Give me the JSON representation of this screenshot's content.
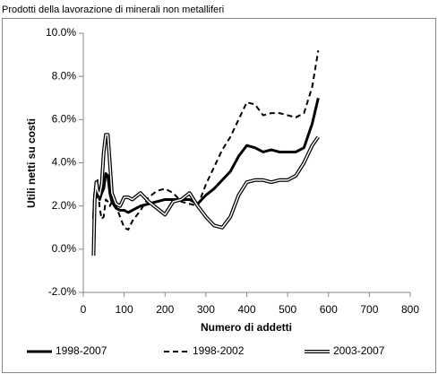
{
  "chart_data": {
    "type": "line",
    "title": "Prodotti della lavorazione di minerali non metalliferi",
    "x_label": "Numero di addetti",
    "y_label": "Utili netti su costi",
    "x": [
      25,
      28,
      32,
      35,
      40,
      45,
      50,
      55,
      60,
      65,
      70,
      80,
      90,
      100,
      110,
      120,
      140,
      160,
      180,
      200,
      220,
      240,
      260,
      280,
      300,
      320,
      340,
      360,
      380,
      400,
      420,
      440,
      460,
      480,
      500,
      520,
      540,
      560,
      575
    ],
    "series": [
      {
        "name": "1998-2007",
        "color": "#000000",
        "style": "solid",
        "values": [
          1.4,
          2.6,
          2.4,
          2.8,
          2.3,
          2.6,
          2.8,
          3.5,
          3.4,
          2.6,
          2.2,
          1.9,
          1.8,
          1.8,
          1.7,
          1.8,
          2.0,
          2.1,
          2.2,
          2.3,
          2.3,
          2.3,
          2.3,
          2.1,
          2.5,
          2.8,
          3.2,
          3.6,
          4.3,
          4.8,
          4.7,
          4.5,
          4.6,
          4.5,
          4.5,
          4.5,
          4.7,
          5.8,
          7.0
        ]
      },
      {
        "name": "1998-2002",
        "color": "#000000",
        "style": "dashed",
        "values": [
          1.5,
          2.8,
          2.5,
          3.2,
          1.9,
          1.4,
          1.5,
          2.3,
          2.2,
          2.0,
          2.2,
          2.0,
          1.5,
          1.0,
          0.9,
          1.3,
          1.8,
          2.4,
          2.7,
          2.8,
          2.6,
          2.2,
          2.1,
          2.0,
          3.0,
          3.8,
          4.6,
          5.2,
          6.0,
          6.8,
          6.7,
          6.2,
          6.3,
          6.3,
          6.2,
          6.1,
          6.3,
          7.5,
          9.2
        ]
      },
      {
        "name": "2003-2007",
        "color": "#000000",
        "style": "double",
        "values": [
          -0.3,
          2.3,
          3.1,
          2.7,
          2.5,
          3.0,
          4.5,
          5.3,
          5.3,
          4.0,
          2.6,
          2.1,
          2.0,
          2.4,
          2.4,
          2.3,
          2.6,
          2.2,
          1.9,
          1.6,
          2.2,
          2.3,
          2.6,
          2.0,
          1.5,
          1.1,
          1.0,
          1.5,
          2.5,
          3.1,
          3.2,
          3.2,
          3.1,
          3.2,
          3.2,
          3.4,
          4.0,
          4.8,
          5.2
        ]
      }
    ],
    "xlim": [
      0,
      800
    ],
    "xticks": [
      0,
      100,
      200,
      300,
      400,
      500,
      600,
      700,
      800
    ],
    "ylim": [
      -2,
      10
    ],
    "yticks": [
      {
        "value": -2,
        "label": "-2.0%"
      },
      {
        "value": 0,
        "label": "0.0%"
      },
      {
        "value": 2,
        "label": "2.0%"
      },
      {
        "value": 4,
        "label": "4.0%"
      },
      {
        "value": 6,
        "label": "6.0%"
      },
      {
        "value": 8,
        "label": "8.0%"
      },
      {
        "value": 10,
        "label": "10.0%"
      }
    ],
    "grid": false,
    "legend": "bottom"
  }
}
